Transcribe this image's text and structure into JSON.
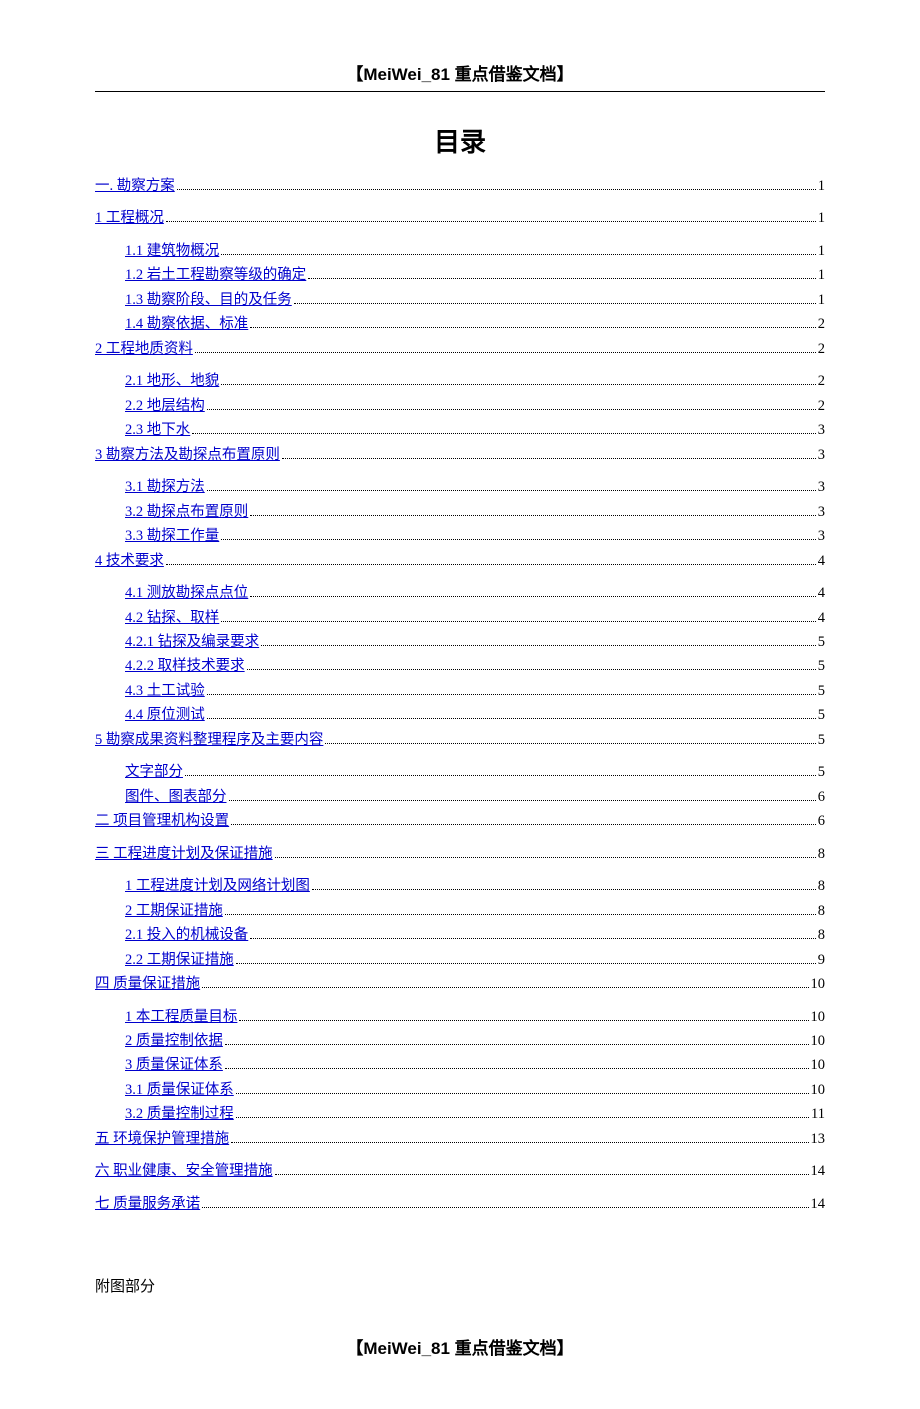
{
  "header": "【MeiWei_81 重点借鉴文档】",
  "footer": "【MeiWei_81 重点借鉴文档】",
  "title": "目录",
  "appendix": "附图部分",
  "toc": [
    {
      "label": "一.  勘察方案",
      "page": "1",
      "indent": 0,
      "gap": false
    },
    {
      "label": "1  工程概况",
      "page": "1",
      "indent": 0,
      "gap": true
    },
    {
      "label": "1.1  建筑物概况",
      "page": "1",
      "indent": 1,
      "gap": true
    },
    {
      "label": "1.2  岩土工程勘察等级的确定",
      "page": "1",
      "indent": 1,
      "gap": false
    },
    {
      "label": "1.3  勘察阶段、目的及任务",
      "page": "1",
      "indent": 1,
      "gap": false
    },
    {
      "label": "1.4 勘察依据、标准",
      "page": "2",
      "indent": 1,
      "gap": false
    },
    {
      "label": "2  工程地质资料",
      "page": "2",
      "indent": 0,
      "gap": false
    },
    {
      "label": "2.1 地形、地貌",
      "page": "2",
      "indent": 1,
      "gap": true
    },
    {
      "label": "2.2 地层结构",
      "page": "2",
      "indent": 1,
      "gap": false
    },
    {
      "label": "2.3 地下水",
      "page": "3",
      "indent": 1,
      "gap": false
    },
    {
      "label": "3  勘察方法及勘探点布置原则",
      "page": "3",
      "indent": 0,
      "gap": false
    },
    {
      "label": "3.1 勘探方法",
      "page": "3",
      "indent": 1,
      "gap": true
    },
    {
      "label": "3.2 勘探点布置原则",
      "page": "3",
      "indent": 1,
      "gap": false
    },
    {
      "label": "3.3 勘探工作量",
      "page": "3",
      "indent": 1,
      "gap": false
    },
    {
      "label": "4 技术要求",
      "page": "4",
      "indent": 0,
      "gap": false
    },
    {
      "label": "4.1  测放勘探点点位",
      "page": "4",
      "indent": 1,
      "gap": true
    },
    {
      "label": "4.2  钻探、取样",
      "page": "4",
      "indent": 1,
      "gap": false
    },
    {
      "label": "4.2.1 钻探及编录要求",
      "page": "5",
      "indent": 1,
      "gap": false
    },
    {
      "label": "4.2.2 取样技术要求",
      "page": "5",
      "indent": 1,
      "gap": false
    },
    {
      "label": "4.3  土工试验",
      "page": "5",
      "indent": 1,
      "gap": false
    },
    {
      "label": "4.4  原位测试",
      "page": "5",
      "indent": 1,
      "gap": false
    },
    {
      "label": "5  勘察成果资料整理程序及主要内容",
      "page": "5",
      "indent": 0,
      "gap": false
    },
    {
      "label": "文字部分",
      "page": "5",
      "indent": 1,
      "gap": true
    },
    {
      "label": "图件、图表部分",
      "page": "6",
      "indent": 1,
      "gap": false
    },
    {
      "label": "二   项目管理机构设置",
      "page": "6",
      "indent": 0,
      "gap": false
    },
    {
      "label": "三 工程进度计划及保证措施",
      "page": "8",
      "indent": 0,
      "gap": true
    },
    {
      "label": "1 工程进度计划及网络计划图",
      "page": "8",
      "indent": 1,
      "gap": true
    },
    {
      "label": "2  工期保证措施",
      "page": "8",
      "indent": 1,
      "gap": false
    },
    {
      "label": "2.1  投入的机械设备",
      "page": "8",
      "indent": 1,
      "gap": false
    },
    {
      "label": "2.2 工期保证措施",
      "page": "9",
      "indent": 1,
      "gap": false
    },
    {
      "label": "四  质量保证措施",
      "page": "10",
      "indent": 0,
      "gap": false
    },
    {
      "label": "1 本工程质量目标",
      "page": "10",
      "indent": 1,
      "gap": true
    },
    {
      "label": "2  质量控制依据",
      "page": "10",
      "indent": 1,
      "gap": false
    },
    {
      "label": "3  质量保证体系",
      "page": "10",
      "indent": 1,
      "gap": false
    },
    {
      "label": "3.1  质量保证体系",
      "page": "10",
      "indent": 1,
      "gap": false
    },
    {
      "label": "3.2  质量控制过程",
      "page": "11",
      "indent": 1,
      "gap": false
    },
    {
      "label": "五  环境保护管理措施",
      "page": "13",
      "indent": 0,
      "gap": false
    },
    {
      "label": "六 职业健康、安全管理措施",
      "page": "14",
      "indent": 0,
      "gap": true
    },
    {
      "label": "七  质量服务承诺",
      "page": "14",
      "indent": 0,
      "gap": true
    }
  ]
}
